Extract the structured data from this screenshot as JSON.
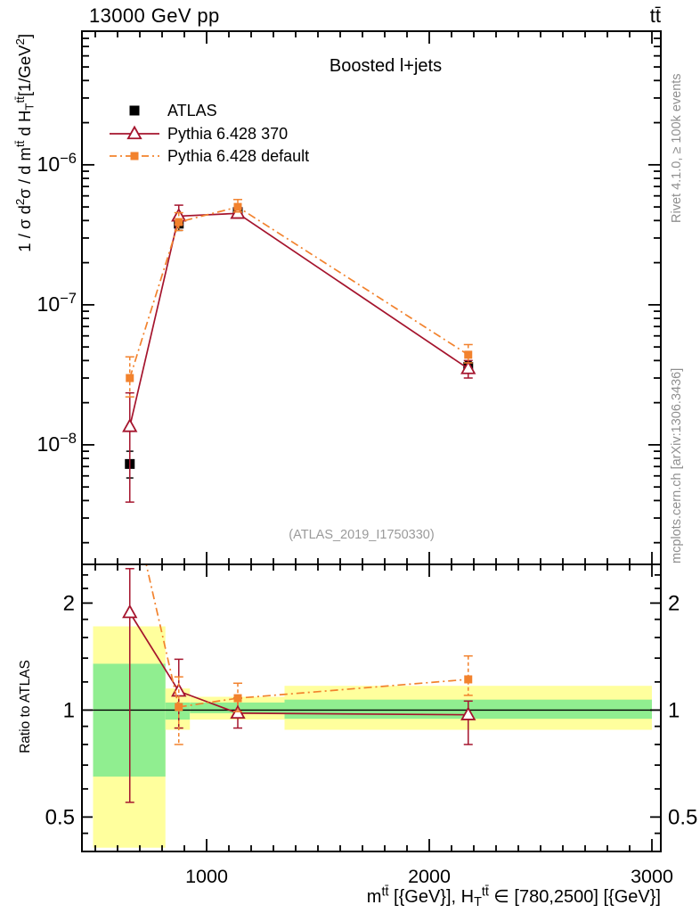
{
  "page": {
    "beam_label": "13000 GeV pp",
    "process_label": "tt̄",
    "plot_title": "Boosted l+jets",
    "watermark": "(ATLAS_2019_I1750330)",
    "side_captions": {
      "rivet": "Rivet 4.1.0, ≥ 100k events",
      "mcplots": "mcplots.cern.ch [arXiv:1306.3436]"
    }
  },
  "chart_data": {
    "type": "line",
    "title": "Boosted l+jets",
    "xlabel": "m^{tt̄} [{GeV}], H_{T}^{tt̄} ∈ [780,2500] [{GeV}]",
    "ylabel": "1 / σ d^{2}σ / d m^{tt̄} d H_{T}^{tt̄}[1/GeV^{2}]",
    "ratio_ylabel": "Ratio to ATLAS",
    "x_axis": {
      "scale": "linear",
      "min": 440,
      "max": 3040,
      "major_ticks": [
        1000,
        2000,
        3000
      ],
      "minor_step": 100
    },
    "y_axis": {
      "scale": "log",
      "min": 1.4e-09,
      "max": 9e-06,
      "major_tick_exponents": [
        -8,
        -7,
        -6
      ]
    },
    "ratio_axis": {
      "scale": "log",
      "min": 0.4,
      "max": 2.57,
      "major_ticks": [
        0.5,
        1,
        2
      ],
      "minor_ticks": [
        0.45,
        0.6,
        0.7,
        0.8,
        0.9,
        1.2,
        1.4,
        1.6,
        1.8,
        2.2,
        2.4
      ]
    },
    "bin_edges": [
      490,
      815,
      925,
      1350,
      3000
    ],
    "x_centers": [
      655,
      875,
      1140,
      2175
    ],
    "series": [
      {
        "id": "atlas",
        "name": "ATLAS",
        "color": "#000000",
        "marker": "square",
        "marker_size": 11,
        "line": "none",
        "values": [
          7.3e-09,
          3.8e-07,
          4.6e-07,
          3.6e-08
        ],
        "err_lo": [
          5.8e-09,
          3.4e-07,
          4.25e-07,
          3.25e-08
        ],
        "err_hi": [
          9e-09,
          4.2e-07,
          4.95e-07,
          3.95e-08
        ],
        "ratio": [
          1,
          1,
          1,
          1
        ]
      },
      {
        "id": "pythia-370",
        "name": "Pythia 6.428 370",
        "color": "#a5142d",
        "marker": "triangle-open",
        "marker_size": 15,
        "line": "solid",
        "values": [
          1.35e-08,
          4.3e-07,
          4.5e-07,
          3.5e-08
        ],
        "err_lo": [
          3.9e-09,
          3.75e-07,
          4.2e-07,
          3e-08
        ],
        "err_hi": [
          2.35e-08,
          5.15e-07,
          4.9e-07,
          4e-08
        ],
        "ratio": [
          1.88,
          1.13,
          0.98,
          0.97
        ],
        "ratio_err_lo": [
          0.55,
          0.89,
          0.89,
          0.8
        ],
        "ratio_err_hi": [
          2.5,
          1.39,
          1.08,
          1.06
        ]
      },
      {
        "id": "pythia-default",
        "name": "Pythia 6.428 default",
        "color": "#f2822d",
        "marker": "square",
        "marker_size": 9,
        "line": "dashdot",
        "values": [
          3e-08,
          3.9e-07,
          5e-07,
          4.4e-08
        ],
        "err_lo": [
          2.2e-08,
          3.4e-07,
          4.6e-07,
          3.85e-08
        ],
        "err_hi": [
          4.25e-08,
          4.55e-07,
          5.65e-07,
          5.2e-08
        ],
        "ratio": [
          4.1,
          1.02,
          1.08,
          1.22
        ],
        "ratio_err_lo": [
          2.9,
          0.8,
          0.99,
          1.1
        ],
        "ratio_err_hi": [
          5.6,
          1.24,
          1.19,
          1.42
        ]
      }
    ],
    "ratio_bands": {
      "yellow": [
        [
          0.41,
          1.72
        ],
        [
          0.88,
          1.15
        ],
        [
          0.94,
          1.09
        ],
        [
          0.88,
          1.17
        ]
      ],
      "green": [
        [
          0.65,
          1.35
        ],
        [
          0.94,
          1.05
        ],
        [
          0.98,
          1.05
        ],
        [
          0.945,
          1.07
        ]
      ]
    },
    "colors": {
      "yellow_band": "#ffff9d",
      "green_band": "#90ee90",
      "atlas": "#000000",
      "pythia370": "#a5142d",
      "pythia_default": "#f2822d",
      "caption_gray": "#8f8f8f",
      "watermark_gray": "#9a9a9a"
    }
  }
}
